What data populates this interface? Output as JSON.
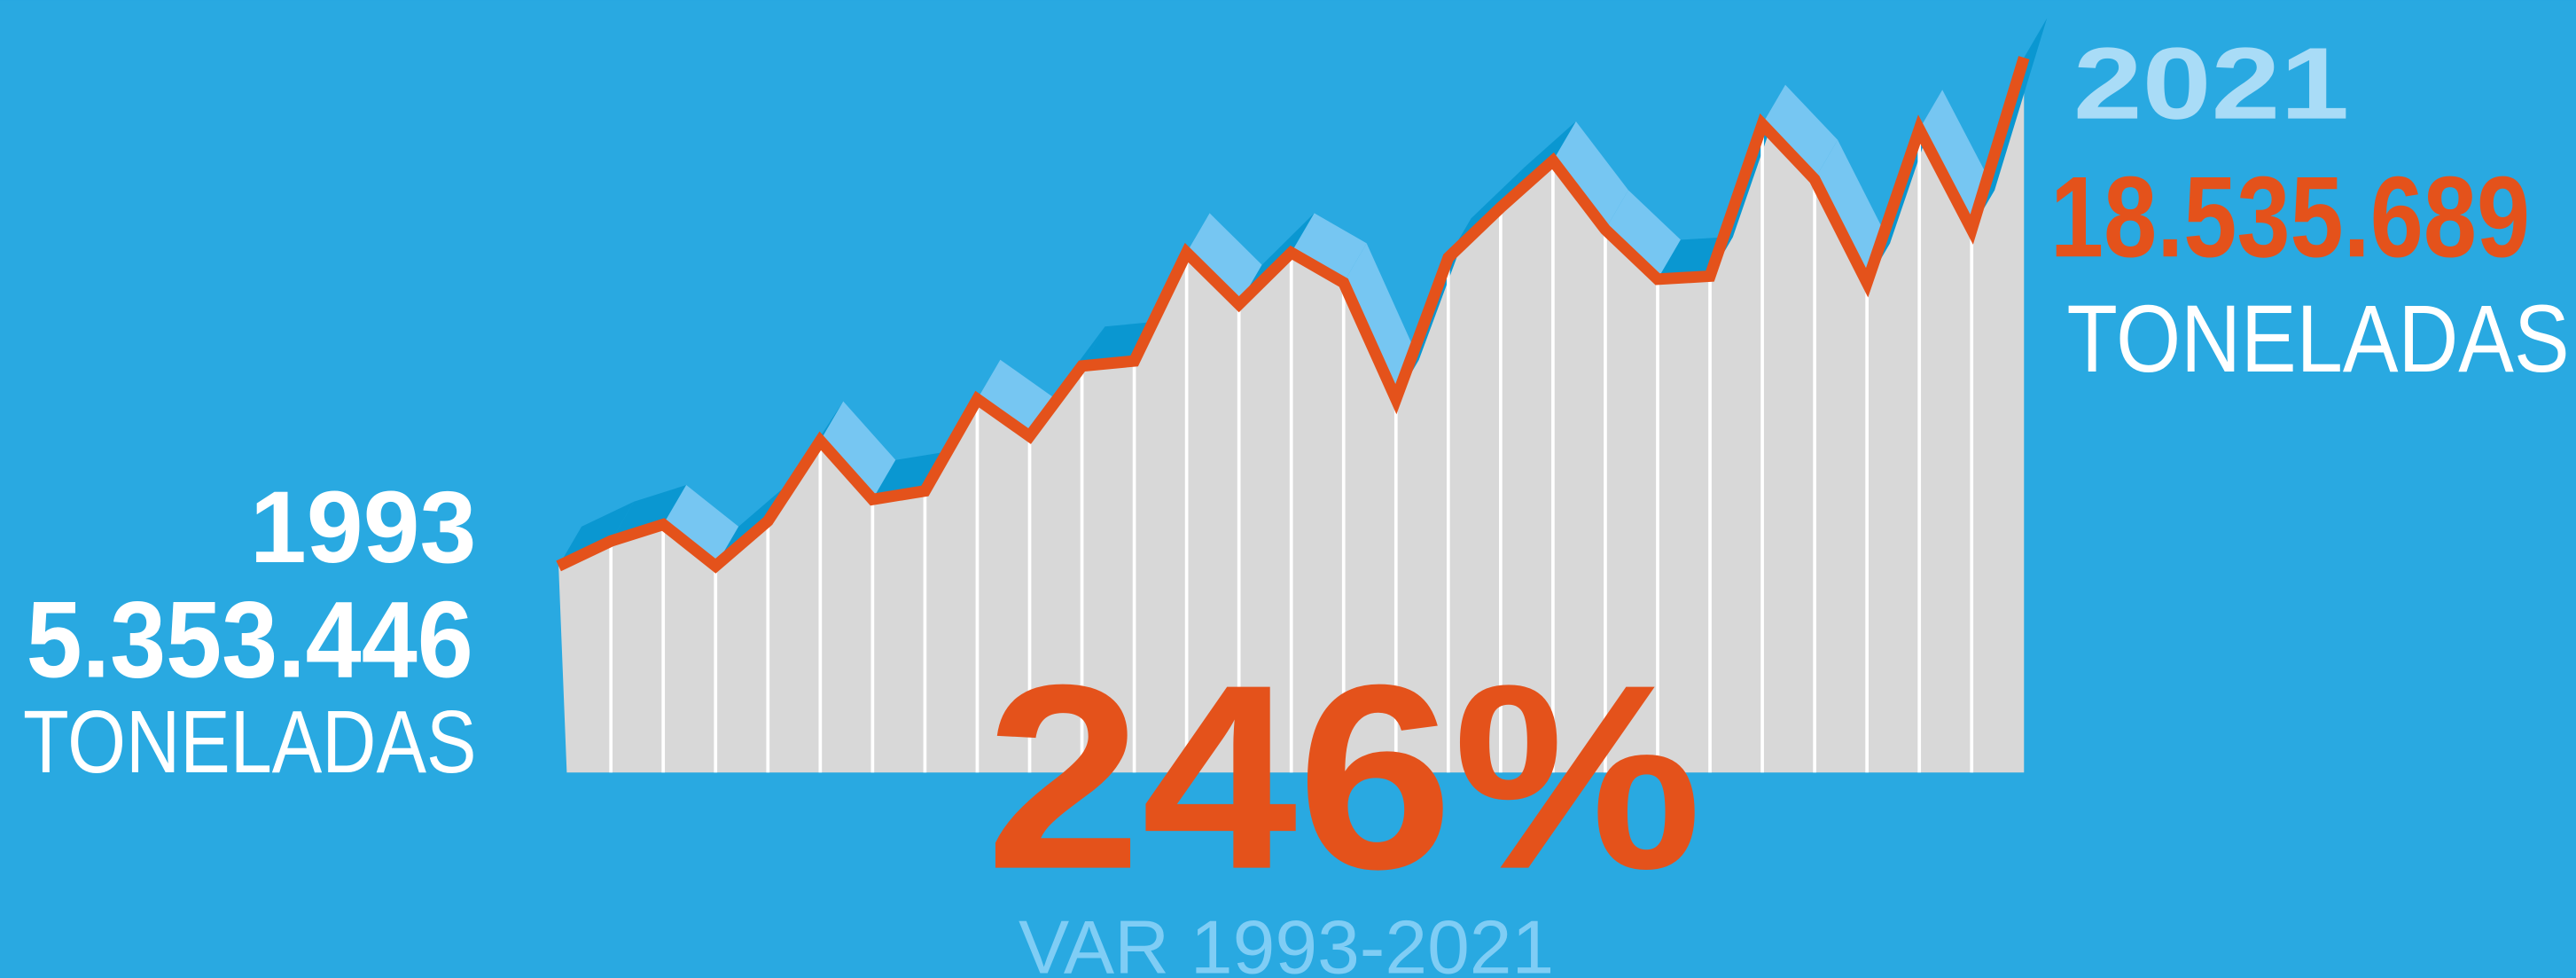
{
  "chart_data": {
    "type": "area",
    "categories": [
      "1993",
      null,
      null,
      null,
      null,
      null,
      null,
      null,
      null,
      null,
      null,
      null,
      null,
      null,
      null,
      null,
      null,
      null,
      null,
      null,
      null,
      null,
      null,
      null,
      null,
      null,
      null,
      null,
      "2021"
    ],
    "values": [
      5353446,
      6000000,
      6430000,
      5353446,
      6520000,
      8600000,
      7080000,
      7300000,
      9680000,
      8720000,
      10540000,
      10670000,
      13480000,
      12140000,
      13480000,
      12700000,
      9680000,
      13350000,
      14650000,
      15860000,
      14080000,
      12790000,
      12870000,
      16810000,
      15380000,
      12700000,
      16680000,
      14080000,
      18535689
    ],
    "value_labels": [
      "5.353.446",
      null,
      null,
      null,
      null,
      null,
      null,
      null,
      null,
      null,
      null,
      null,
      null,
      null,
      null,
      null,
      null,
      null,
      null,
      null,
      null,
      null,
      null,
      null,
      null,
      null,
      null,
      null,
      "18.535.689"
    ],
    "unit": "TONELADAS",
    "annotation": {
      "value": 246,
      "label": "246%"
    },
    "subtitle": "VAR 1993-2021",
    "color": "#e4521b",
    "fill": "#d8d8d8"
  }
}
